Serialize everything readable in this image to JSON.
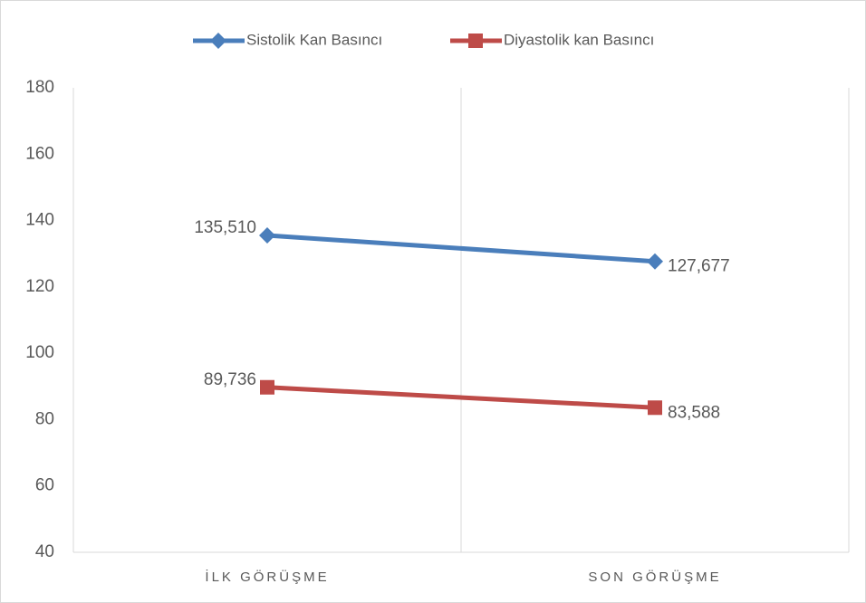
{
  "chart_data": {
    "type": "line",
    "categories": [
      "İLK GÖRÜŞME",
      "SON GÖRÜŞME"
    ],
    "series": [
      {
        "name": "Sistolik Kan Basıncı",
        "color": "#4a7ebb",
        "marker": "diamond",
        "values": [
          135.51,
          127.677
        ],
        "value_labels": [
          "135,510",
          "127,677"
        ]
      },
      {
        "name": "Diyastolik kan Basıncı",
        "color": "#be4b48",
        "marker": "square",
        "values": [
          89.736,
          83.588
        ],
        "value_labels": [
          "89,736",
          "83,588"
        ]
      }
    ],
    "ylim": [
      40,
      180
    ],
    "yticks": [
      40,
      60,
      80,
      100,
      120,
      140,
      160,
      180
    ],
    "legend": "top"
  }
}
